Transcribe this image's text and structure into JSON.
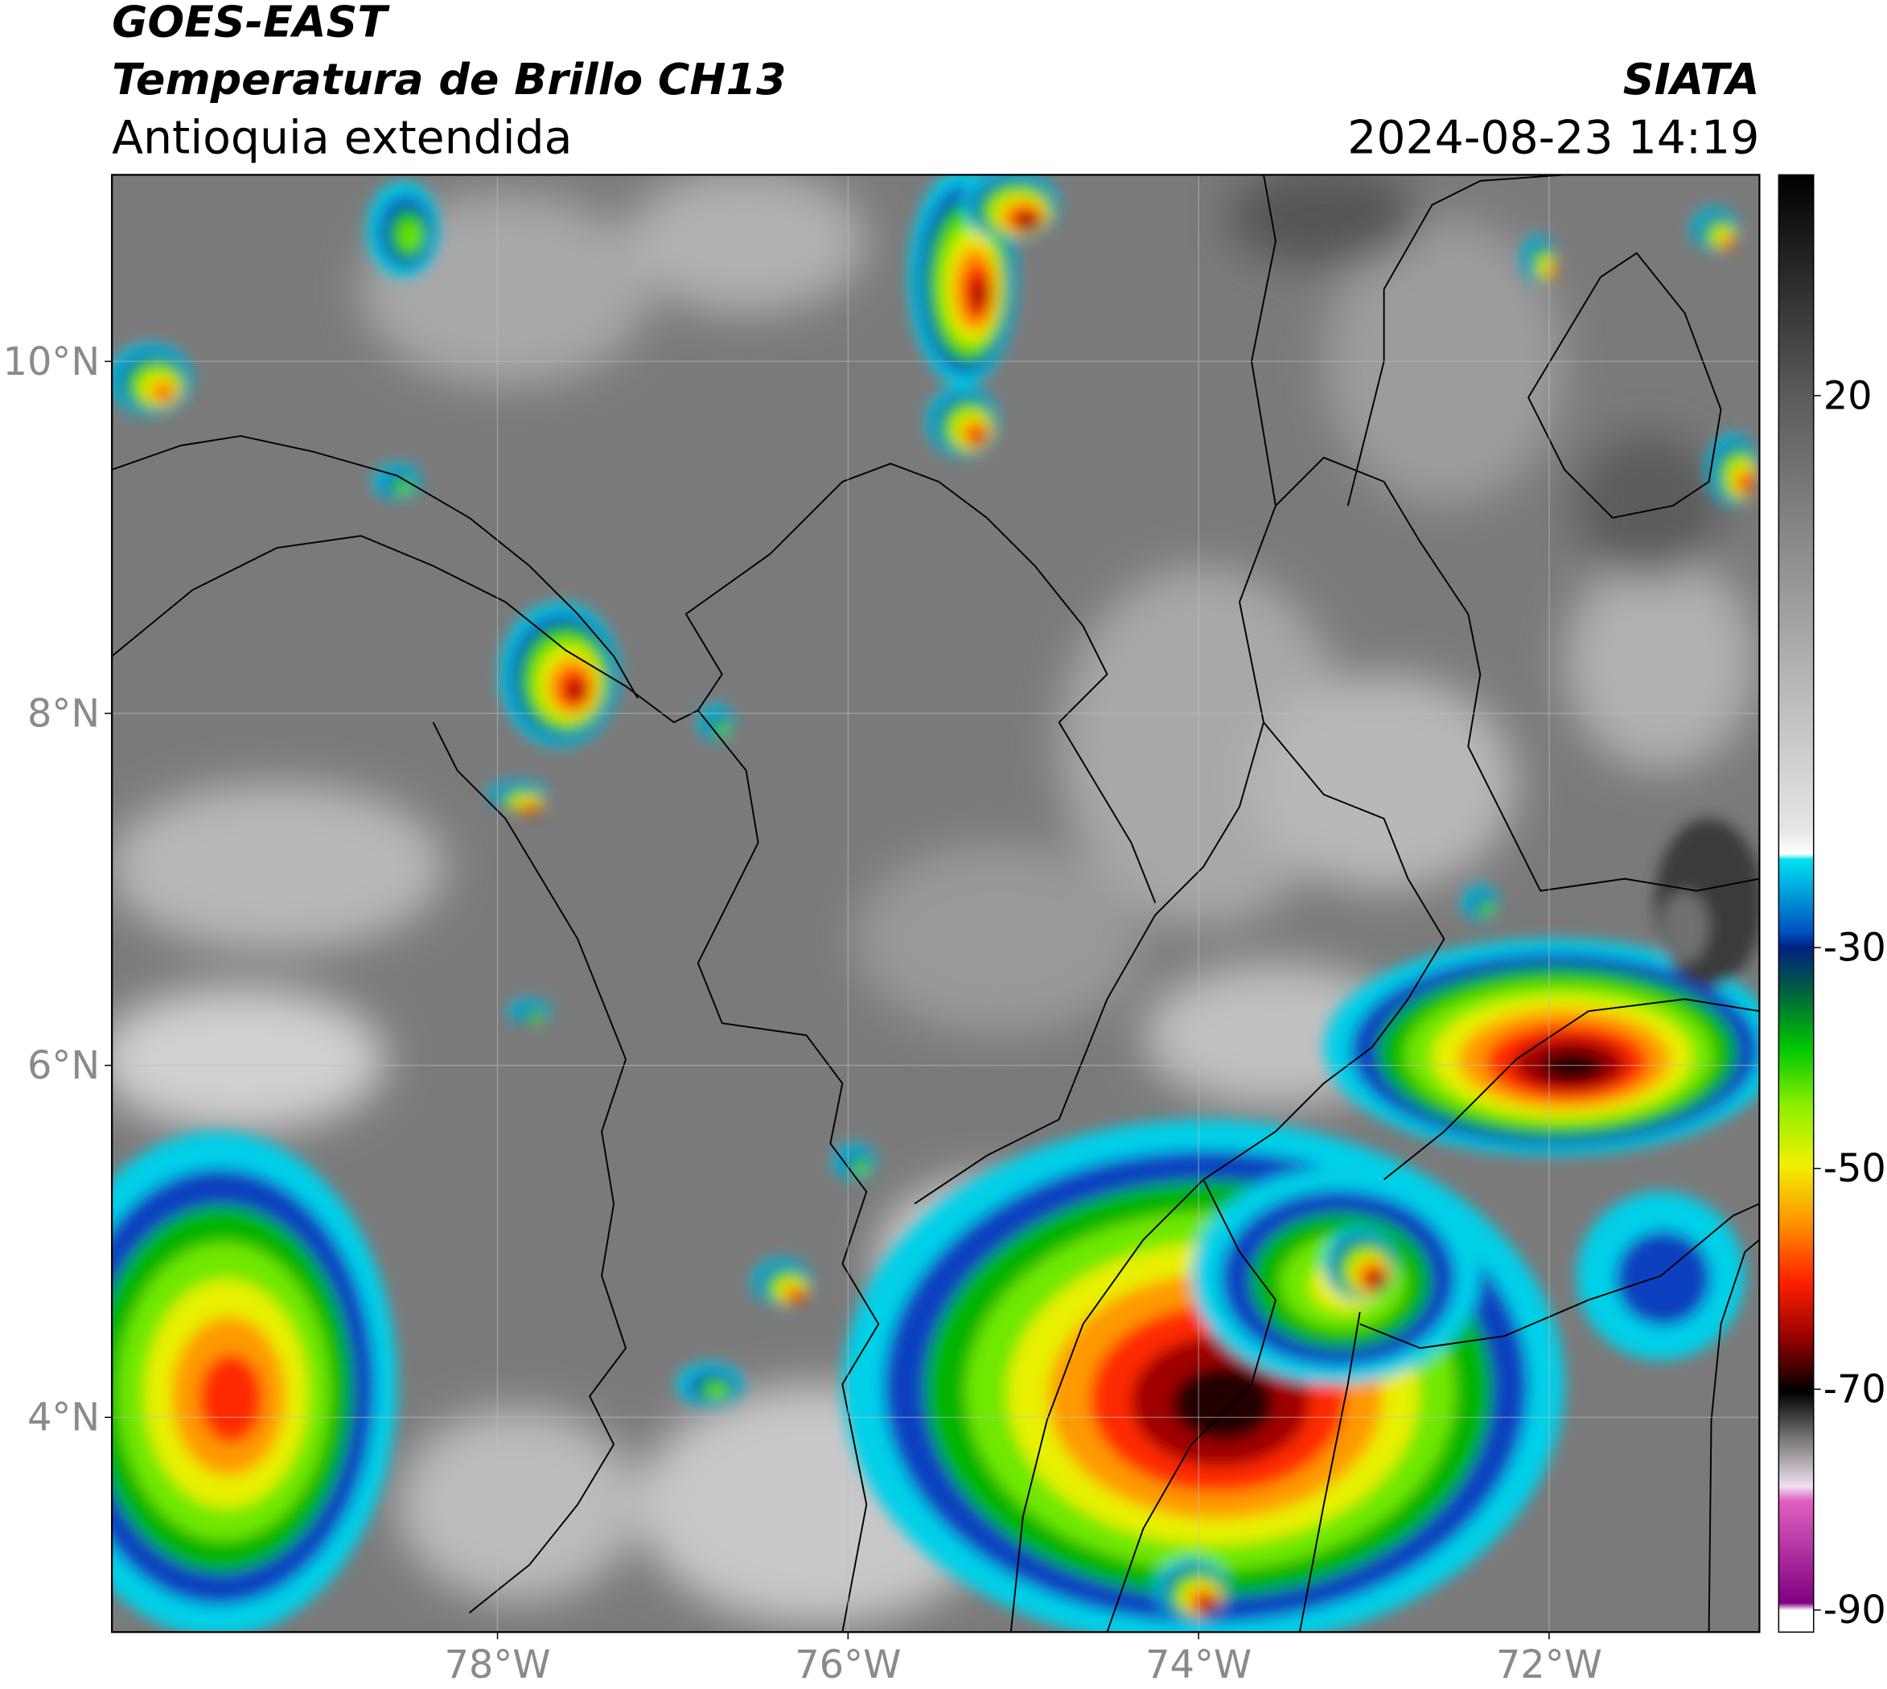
{
  "header": {
    "title": "GOES-EAST",
    "subtitle": "Temperatura de Brillo CH13",
    "region": "Antioquia extendida",
    "source": "SIATA",
    "datetime": "2024-08-23 14:19"
  },
  "map": {
    "xlim": [
      -80.2,
      -70.8
    ],
    "ylim": [
      2.78,
      11.06
    ],
    "xticks": [
      {
        "value": -78,
        "label": "78°W"
      },
      {
        "value": -76,
        "label": "76°W"
      },
      {
        "value": -74,
        "label": "74°W"
      },
      {
        "value": -72,
        "label": "72°W"
      }
    ],
    "yticks": [
      {
        "value": 10,
        "label": "10°N"
      },
      {
        "value": 8,
        "label": "8°N"
      },
      {
        "value": 6,
        "label": "6°N"
      },
      {
        "value": 4,
        "label": "4°N"
      }
    ],
    "grid": true
  },
  "colorbar": {
    "lim": [
      -92,
      40
    ],
    "ticks": [
      20,
      -30,
      -50,
      -70,
      -90
    ]
  }
}
